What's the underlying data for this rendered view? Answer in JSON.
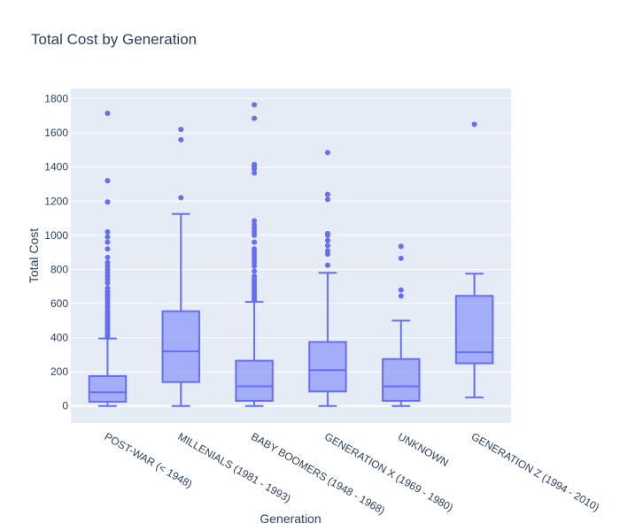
{
  "chart_data": {
    "type": "box",
    "title": "Total Cost by Generation",
    "xlabel": "Generation",
    "ylabel": "Total Cost",
    "ylim": [
      -100,
      1860
    ],
    "yticks": [
      0,
      200,
      400,
      600,
      800,
      1000,
      1200,
      1400,
      1600,
      1800
    ],
    "grid": true,
    "legend": "none",
    "colors": {
      "plot_bg": "#e5ecf6",
      "box_line": "#636efa",
      "box_fill": "rgba(99,110,250,0.5)",
      "text": "#2a3f5f"
    },
    "categories": [
      "POST-WAR (< 1948)",
      "MILLENIALS (1981 - 1993)",
      "BABY BOOMERS (1948 - 1968)",
      "GENERATION X (1969 - 1980)",
      "UNKNOWN",
      "GENERATION Z (1994 - 2010)"
    ],
    "boxes": [
      {
        "min": 0,
        "q1": 25,
        "median": 80,
        "q3": 175,
        "max": 395,
        "outliers": [
          410,
          420,
          435,
          450,
          465,
          480,
          495,
          510,
          525,
          540,
          555,
          575,
          590,
          605,
          625,
          640,
          655,
          670,
          690,
          720,
          740,
          760,
          780,
          800,
          820,
          840,
          870,
          920,
          960,
          990,
          1020,
          1195,
          1320,
          1715
        ]
      },
      {
        "min": 0,
        "q1": 140,
        "median": 320,
        "q3": 555,
        "max": 1125,
        "outliers": [
          1220,
          1560,
          1620
        ]
      },
      {
        "min": 0,
        "q1": 30,
        "median": 115,
        "q3": 265,
        "max": 610,
        "outliers": [
          620,
          635,
          650,
          665,
          680,
          695,
          710,
          725,
          740,
          760,
          790,
          820,
          840,
          860,
          880,
          900,
          920,
          960,
          1000,
          1020,
          1040,
          1060,
          1085,
          1365,
          1390,
          1405,
          1415,
          1685,
          1765
        ]
      },
      {
        "min": 0,
        "q1": 85,
        "median": 210,
        "q3": 375,
        "max": 780,
        "outliers": [
          825,
          890,
          910,
          940,
          970,
          1000,
          1010,
          1210,
          1240,
          1485
        ]
      },
      {
        "min": 0,
        "q1": 30,
        "median": 115,
        "q3": 275,
        "max": 500,
        "outliers": [
          645,
          680,
          865,
          935
        ]
      },
      {
        "min": 50,
        "q1": 250,
        "median": 315,
        "q3": 645,
        "max": 775,
        "outliers": [
          1650
        ]
      }
    ]
  }
}
